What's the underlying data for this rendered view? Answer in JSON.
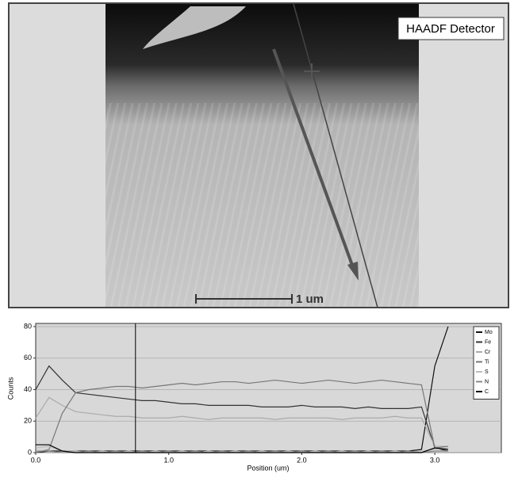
{
  "image": {
    "label": "HAADF Detector",
    "scale_bar": "1 um"
  },
  "chart_data": {
    "type": "line",
    "x_label": "Position (um)",
    "y_label": "Counts",
    "x": [
      0.0,
      0.1,
      0.2,
      0.3,
      0.4,
      0.5,
      0.6,
      0.7,
      0.8,
      0.9,
      1.0,
      1.1,
      1.2,
      1.3,
      1.4,
      1.5,
      1.6,
      1.7,
      1.8,
      1.9,
      2.0,
      2.1,
      2.2,
      2.3,
      2.4,
      2.5,
      2.6,
      2.7,
      2.8,
      2.9,
      3.0,
      3.1
    ],
    "series": [
      {
        "name": "Mo",
        "color": "#111111",
        "values": [
          0,
          1,
          1,
          1,
          1,
          1,
          1,
          1,
          1,
          1,
          1,
          1,
          1,
          1,
          1,
          1,
          1,
          1,
          1,
          1,
          1,
          1,
          1,
          1,
          1,
          1,
          1,
          1,
          1,
          2,
          55,
          80
        ]
      },
      {
        "name": "Fe",
        "color": "#333333",
        "values": [
          40,
          55,
          46,
          38,
          37,
          36,
          35,
          34,
          33,
          33,
          32,
          31,
          31,
          30,
          30,
          30,
          30,
          29,
          29,
          29,
          30,
          29,
          29,
          29,
          28,
          29,
          28,
          28,
          28,
          29,
          3,
          1
        ]
      },
      {
        "name": "Cr",
        "color": "#aaaaaa",
        "values": [
          22,
          35,
          30,
          26,
          25,
          24,
          23,
          23,
          22,
          22,
          22,
          23,
          22,
          21,
          22,
          22,
          22,
          22,
          21,
          22,
          22,
          22,
          22,
          21,
          22,
          22,
          22,
          23,
          22,
          22,
          4,
          4
        ]
      },
      {
        "name": "Ti",
        "color": "#777777",
        "values": [
          0,
          2,
          25,
          38,
          40,
          41,
          42,
          42,
          41,
          42,
          43,
          44,
          43,
          44,
          45,
          45,
          44,
          45,
          46,
          45,
          44,
          45,
          46,
          45,
          44,
          45,
          46,
          45,
          44,
          43,
          3,
          4
        ]
      },
      {
        "name": "S",
        "color": "#bbbbbb",
        "values": [
          3,
          4,
          1,
          1,
          0,
          1,
          0,
          1,
          0,
          1,
          0,
          1,
          0,
          1,
          0,
          1,
          0,
          1,
          0,
          1,
          0,
          1,
          0,
          1,
          0,
          1,
          0,
          1,
          0,
          1,
          2,
          3
        ]
      },
      {
        "name": "N",
        "color": "#888888",
        "values": [
          1,
          1,
          0,
          0,
          1,
          0,
          1,
          0,
          1,
          0,
          1,
          0,
          1,
          0,
          1,
          0,
          1,
          0,
          1,
          0,
          1,
          0,
          1,
          0,
          1,
          0,
          1,
          0,
          1,
          0,
          1,
          1
        ]
      },
      {
        "name": "C",
        "color": "#000000",
        "values": [
          5,
          5,
          1,
          0,
          0,
          0,
          0,
          0,
          0,
          0,
          0,
          0,
          0,
          0,
          0,
          0,
          0,
          0,
          0,
          0,
          0,
          0,
          0,
          0,
          0,
          0,
          0,
          0,
          0,
          0,
          3,
          2
        ]
      }
    ],
    "cursor": 0.75,
    "xlim": [
      0,
      3.5
    ],
    "ylim": [
      0,
      82
    ],
    "xticks": [
      {
        "value": 0,
        "label": "0.0"
      },
      {
        "value": 1,
        "label": "1.0"
      },
      {
        "value": 2,
        "label": "2.0"
      },
      {
        "value": 3,
        "label": "3.0"
      }
    ],
    "yticks": [
      0,
      20,
      40,
      60,
      80
    ],
    "grid": true,
    "legend": "upper right"
  }
}
